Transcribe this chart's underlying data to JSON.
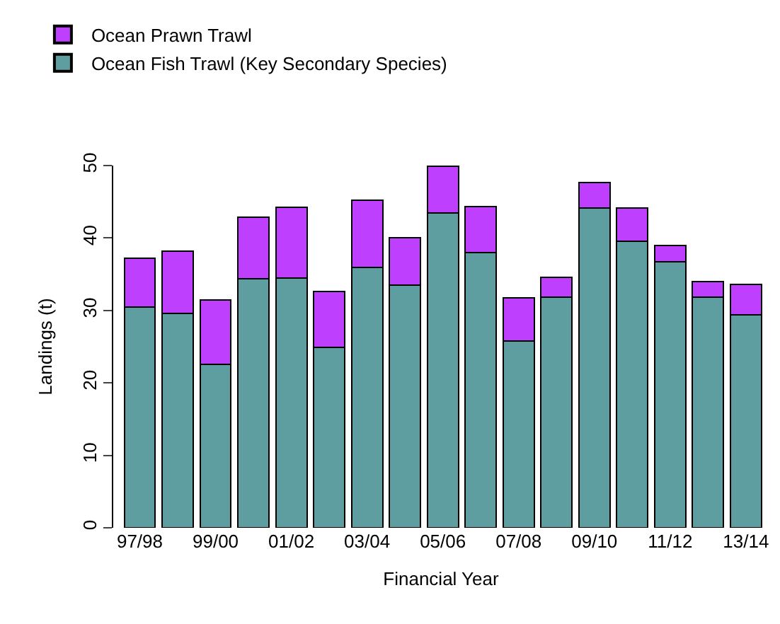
{
  "chart_data": {
    "type": "bar",
    "stacked": true,
    "xlabel": "Financial Year",
    "ylabel": "Landings (t)",
    "categories": [
      "97/98",
      null,
      "99/00",
      null,
      "01/02",
      null,
      "03/04",
      null,
      "05/06",
      null,
      "07/08",
      null,
      "09/10",
      null,
      "11/12",
      null,
      "13/14"
    ],
    "series": [
      {
        "name": "Ocean Fish Trawl (Key Secondary Species)",
        "color": "#5f9ea0",
        "values": [
          30.5,
          29.6,
          22.6,
          34.4,
          34.5,
          24.9,
          35.9,
          33.5,
          43.5,
          38.0,
          25.8,
          31.8,
          44.1,
          39.6,
          36.7,
          31.8,
          29.4
        ]
      },
      {
        "name": "Ocean Prawn Trawl",
        "color": "#bf3fff",
        "values": [
          6.7,
          8.6,
          8.8,
          8.5,
          9.7,
          7.7,
          9.3,
          6.5,
          6.4,
          6.3,
          5.9,
          2.8,
          3.6,
          4.5,
          2.3,
          2.2,
          4.2
        ]
      }
    ],
    "ylim": [
      0,
      50
    ],
    "yticks": [
      0,
      10,
      20,
      30,
      40,
      50
    ],
    "legend": "top left"
  }
}
